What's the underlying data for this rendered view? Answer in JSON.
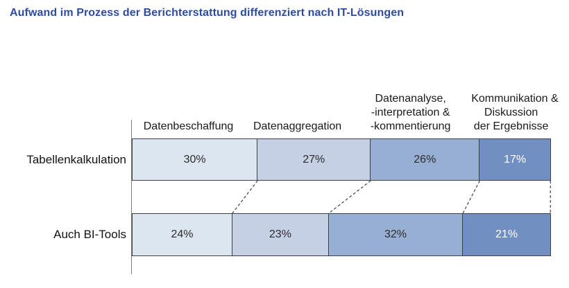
{
  "title": "Aufwand im Prozess der Berichterstattung differenziert nach IT-Lösungen",
  "title_color": "#2e4c9f",
  "chart_data": {
    "type": "bar",
    "variant": "horizontal-stacked-100",
    "title": "Aufwand im Prozess der Berichterstattung differenziert nach IT-Lösungen",
    "categories": [
      "Datenbeschaffung",
      "Datenaggregation",
      "Datenanalyse,\n-interpretation &\n-kommentierung",
      "Kommunikation &\nDiskussion\nder Ergebnisse"
    ],
    "series": [
      {
        "name": "Tabellenkalkulation",
        "values": [
          30,
          27,
          26,
          17
        ]
      },
      {
        "name": "Auch BI-Tools",
        "values": [
          24,
          23,
          32,
          21
        ]
      }
    ],
    "unit": "%",
    "xlim": [
      0,
      100
    ],
    "grid": false,
    "legend_position": "row-labels-left",
    "segment_colors": [
      "#dce6f1",
      "#c5d0e4",
      "#97afd3",
      "#7190c1"
    ],
    "segment_text_colors": [
      "#2b2b2b",
      "#2b2b2b",
      "#2b2b2b",
      "#ffffff"
    ],
    "border_color": "#3b4046",
    "axis_line_color": "#7a7a7a",
    "connector_color": "#3b4046"
  }
}
